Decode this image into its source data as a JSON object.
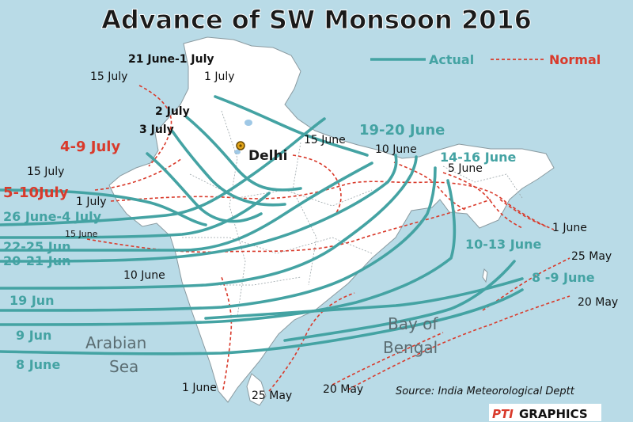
{
  "title": "Advance of SW Monsoon 2016",
  "legend": {
    "actual": "Actual",
    "normal": "Normal"
  },
  "colors": {
    "sea": "#b9dbe7",
    "land": "#ffffff",
    "actual": "#44a3a3",
    "normal": "#d93a2b",
    "title": "#1a1a1a",
    "water_label": "#5b6d72"
  },
  "places": {
    "delhi": "Delhi"
  },
  "water_labels": {
    "arabian": "Arabian",
    "sea": "Sea",
    "bay": "Bay of",
    "bengal": "Bengal"
  },
  "actual_labels": {
    "jun21_jul1": "21 June-1 July",
    "jul2": "2 July",
    "jul3": "3 July",
    "jul4_9": "4-9 July",
    "jul5_10": "5-10July",
    "jun26_jul4": "26 June-4 July",
    "jun22_25": "22-25 Jun",
    "jun20_21": "20-21 Jun",
    "jun19": "19 Jun",
    "jun9": "9 Jun",
    "jun8": "8  June",
    "jun19_20": "19-20 June",
    "jun14_16": "14-16 June",
    "jun10_13": "10-13 June",
    "jun8_9": "8 -9 June"
  },
  "normal_labels": {
    "jul15_a": "15 July",
    "jul1": "1 July",
    "jul15_b": "15 July",
    "jul1_b": "1 July",
    "jun15_a": "15 June",
    "jun15_b": "15 June",
    "jun10_a": "10 June",
    "jun10_b": "10 June",
    "jun5": "5 June",
    "jun1_a": "1 June",
    "may25_a": "25 May",
    "may20_a": "20 May",
    "jun1_b": "1 June",
    "may25_b": "25 May",
    "may20_b": "20 May"
  },
  "source": "Source: India Meteorological Deptt",
  "credit": {
    "pti": "PTI",
    "graphics": "GRAPHICS"
  }
}
